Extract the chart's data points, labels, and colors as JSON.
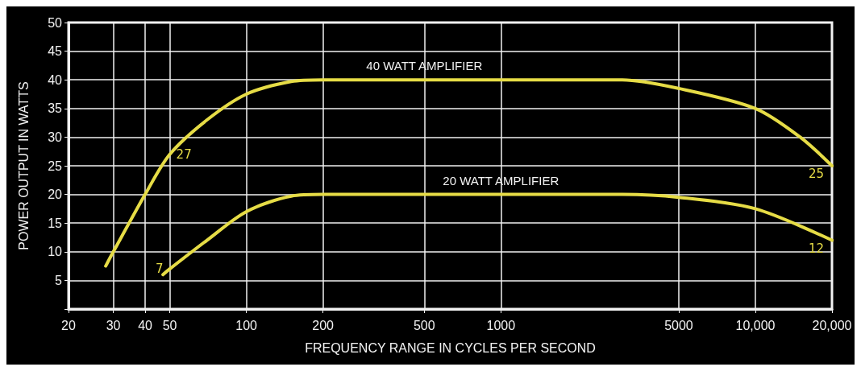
{
  "chart_data": {
    "type": "line",
    "xlabel": "FREQUENCY RANGE IN CYCLES PER SECOND",
    "ylabel": "POWER OUTPUT IN WATTS",
    "log": "x",
    "xlim": [
      20,
      20000
    ],
    "xticks": [
      20,
      30,
      40,
      50,
      100,
      200,
      500,
      1000,
      5000,
      {
        "value": 10000,
        "label": "10,000"
      },
      {
        "value": 20000,
        "label": "20,000"
      }
    ],
    "ylim": [
      0,
      50
    ],
    "yticks": [
      {
        "value": 0,
        "label": null
      },
      5,
      10,
      15,
      20,
      25,
      30,
      35,
      40,
      45,
      50
    ],
    "grid": true,
    "legend": false,
    "marker": "none",
    "line_style": "solid",
    "series": [
      {
        "name": "40 WATT AMPLIFIER",
        "color": "#e6dc46",
        "x": [
          28,
          30,
          40,
          50,
          70,
          100,
          150,
          200,
          500,
          1000,
          3000,
          5000,
          10000,
          15000,
          20000
        ],
        "values": [
          7.5,
          10,
          20,
          27,
          33,
          37.5,
          39.7,
          40,
          40,
          40,
          40,
          38.5,
          35,
          30,
          25
        ],
        "value_labels": [
          null,
          null,
          null,
          "27",
          null,
          null,
          null,
          null,
          null,
          null,
          null,
          null,
          null,
          null,
          "25"
        ]
      },
      {
        "name": "20 WATT AMPLIFIER",
        "color": "#e6dc46",
        "x": [
          47,
          50,
          70,
          100,
          150,
          200,
          1000,
          3000,
          5000,
          10000,
          20000
        ],
        "values": [
          6,
          7,
          12,
          17,
          19.7,
          20,
          20,
          20,
          19.5,
          17.5,
          12
        ],
        "value_labels": [
          null,
          "7",
          null,
          null,
          null,
          null,
          null,
          null,
          null,
          null,
          "12"
        ]
      }
    ]
  }
}
